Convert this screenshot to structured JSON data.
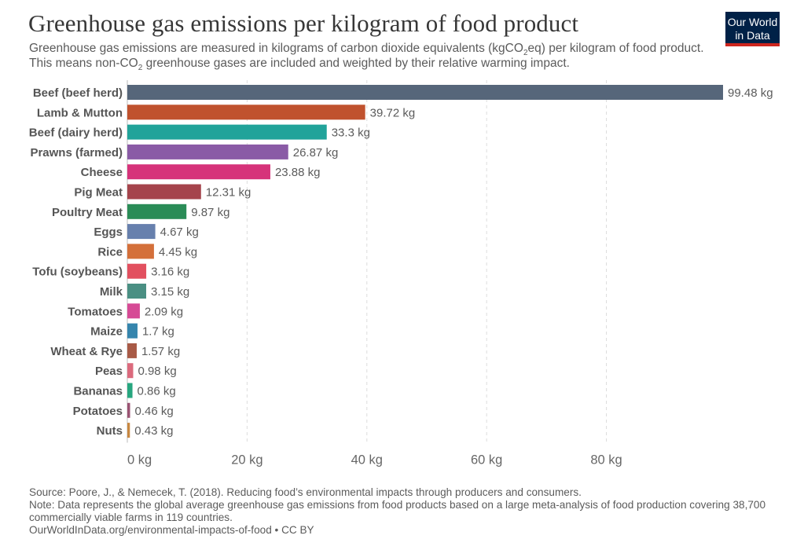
{
  "header": {
    "title": "Greenhouse gas emissions per kilogram of food product",
    "subtitle_part1": "Greenhouse gas emissions are measured in kilograms of carbon dioxide equivalents (kgCO",
    "subtitle_sub1": "2",
    "subtitle_part2": "eq) per kilogram of food product. This means non-CO",
    "subtitle_sub2": "2",
    "subtitle_part3": " greenhouse gases are included and weighted by their relative warming impact.",
    "logo_line1": "Our World",
    "logo_line2": "in Data"
  },
  "chart_data": {
    "type": "bar",
    "orientation": "horizontal",
    "categories": [
      "Beef (beef herd)",
      "Lamb & Mutton",
      "Beef (dairy herd)",
      "Prawns (farmed)",
      "Cheese",
      "Pig Meat",
      "Poultry Meat",
      "Eggs",
      "Rice",
      "Tofu (soybeans)",
      "Milk",
      "Tomatoes",
      "Maize",
      "Wheat & Rye",
      "Peas",
      "Bananas",
      "Potatoes",
      "Nuts"
    ],
    "values": [
      99.48,
      39.72,
      33.3,
      26.87,
      23.88,
      12.31,
      9.87,
      4.67,
      4.45,
      3.16,
      3.15,
      2.09,
      1.7,
      1.57,
      0.98,
      0.86,
      0.46,
      0.43
    ],
    "value_labels": [
      "99.48 kg",
      "39.72 kg",
      "33.3 kg",
      "26.87 kg",
      "23.88 kg",
      "12.31 kg",
      "9.87 kg",
      "4.67 kg",
      "4.45 kg",
      "3.16 kg",
      "3.15 kg",
      "2.09 kg",
      "1.7 kg",
      "1.57 kg",
      "0.98 kg",
      "0.86 kg",
      "0.46 kg",
      "0.43 kg"
    ],
    "colors": [
      "#56667a",
      "#c0522e",
      "#21a39a",
      "#8a5ba6",
      "#d6337a",
      "#a5444c",
      "#2a8c57",
      "#6780ad",
      "#d4703a",
      "#e2505f",
      "#4a8f83",
      "#d64a95",
      "#3585ad",
      "#a85a46",
      "#db6a7d",
      "#27a67f",
      "#9a5272",
      "#c88740"
    ],
    "x_ticks": [
      0,
      20,
      40,
      60,
      80
    ],
    "x_tick_labels": [
      "0 kg",
      "20 kg",
      "40 kg",
      "60 kg",
      "80 kg"
    ],
    "xlim": [
      0,
      99.48
    ],
    "grid": "vertical-dashed",
    "legend": "none"
  },
  "footer": {
    "source": "Source: Poore, J., & Nemecek, T. (2018). Reducing food’s environmental impacts through producers and consumers.",
    "note": "Note: Data represents the global average greenhouse gas emissions from food products based on a large meta-analysis of food production covering 38,700 commercially viable farms in 119 countries.",
    "credit": "OurWorldInData.org/environmental-impacts-of-food • CC BY"
  }
}
